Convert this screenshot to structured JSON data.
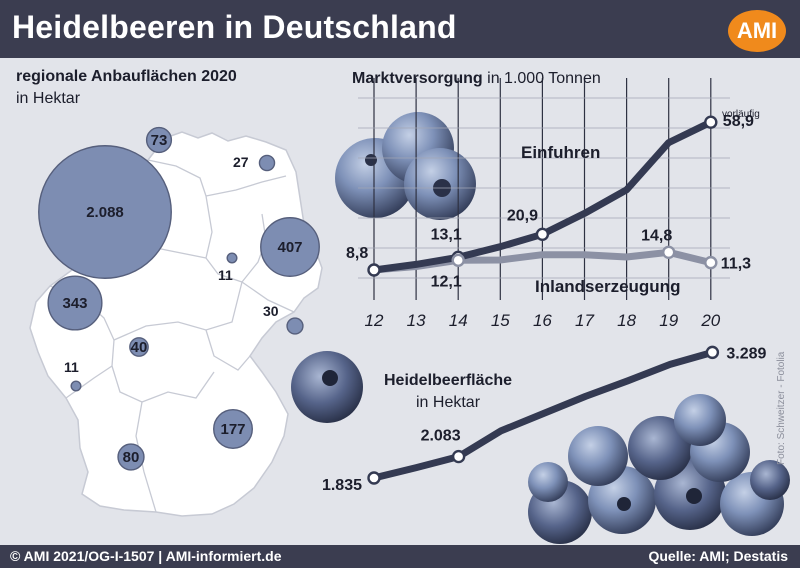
{
  "header": {
    "title": "Heidelbeeren in Deutschland",
    "logo": "AMI"
  },
  "footer": {
    "left": "© AMI 2021/OG-I-1507 | AMI-informiert.de",
    "right": "Quelle: AMI; Destatis"
  },
  "photo_credit": "Foto: Schweitzer - Fotolia",
  "map": {
    "title": "regionale Anbauflächen 2020",
    "unit": "in Hektar",
    "regions": [
      {
        "label": "73",
        "value": 73
      },
      {
        "label": "2.088",
        "value": 2088
      },
      {
        "label": "27",
        "value": 27
      },
      {
        "label": "407",
        "value": 407
      },
      {
        "label": "11",
        "value": 11
      },
      {
        "label": "343",
        "value": 343
      },
      {
        "label": "30",
        "value": 30
      },
      {
        "label": "40",
        "value": 40
      },
      {
        "label": "11",
        "value": 11
      },
      {
        "label": "177",
        "value": 177
      },
      {
        "label": "80",
        "value": 80
      }
    ]
  },
  "market": {
    "title_bold": "Marktversorgung",
    "title_rest": " in 1.000 Tonnen"
  },
  "area_chart": {
    "title": "Heidelbeerfläche",
    "unit": "in Hektar"
  },
  "colors": {
    "header": "#3b3d50",
    "bubble": "#7d8db2",
    "line_dark": "#343a52",
    "line_light": "#8c91a4",
    "logo": "#f08a1c"
  },
  "chart_data": [
    {
      "type": "line",
      "title": "Marktversorgung in 1.000 Tonnen",
      "x": [
        12,
        13,
        14,
        15,
        16,
        17,
        18,
        19,
        20
      ],
      "x_tick_labels": [
        "12",
        "13",
        "14",
        "15",
        "16",
        "17",
        "18",
        "19",
        "20"
      ],
      "ylim": [
        0,
        65
      ],
      "grid": true,
      "series": [
        {
          "name": "Einfuhren",
          "values": [
            8.8,
            10.7,
            13.1,
            16.7,
            20.9,
            28.0,
            36.0,
            52.0,
            58.9
          ],
          "labels": [
            {
              "x": 12,
              "text": "8,8"
            },
            {
              "x": 14,
              "text": "13,1"
            },
            {
              "x": 16,
              "text": "20,9"
            },
            {
              "x": 20,
              "text": "58,9"
            }
          ],
          "note": "vorläufig"
        },
        {
          "name": "Inlandserzeugung",
          "values": [
            8.8,
            10.0,
            12.1,
            12.2,
            14.0,
            14.0,
            13.2,
            14.8,
            11.3
          ],
          "labels": [
            {
              "x": 14,
              "text": "12,1"
            },
            {
              "x": 19,
              "text": "14,8"
            },
            {
              "x": 20,
              "text": "11,3"
            }
          ]
        }
      ]
    },
    {
      "type": "line",
      "title": "Heidelbeerfläche in Hektar",
      "x": [
        12,
        13,
        14,
        15,
        16,
        17,
        18,
        19,
        20
      ],
      "ylim": [
        1700,
        3350
      ],
      "series": [
        {
          "name": "Heidelbeerfläche",
          "values": [
            1835,
            1955,
            2083,
            2380,
            2580,
            2780,
            2960,
            3150,
            3289
          ],
          "labels": [
            {
              "x": 12,
              "text": "1.835"
            },
            {
              "x": 14,
              "text": "2.083"
            },
            {
              "x": 20,
              "text": "3.289"
            }
          ]
        }
      ]
    }
  ]
}
